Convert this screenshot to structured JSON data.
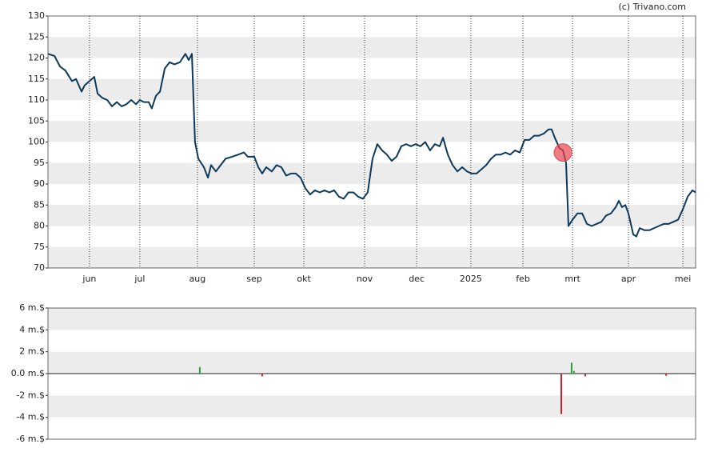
{
  "chart_data": [
    {
      "type": "line",
      "credit": "(c) Trivano.com",
      "xlim": [
        0,
        270
      ],
      "ylim": [
        70,
        130
      ],
      "yticks": [
        70,
        75,
        80,
        85,
        90,
        95,
        100,
        105,
        110,
        115,
        120,
        125,
        130
      ],
      "xticks": [
        {
          "value": 17.3,
          "label": "jun"
        },
        {
          "value": 38.3,
          "label": "jul"
        },
        {
          "value": 62.3,
          "label": "aug"
        },
        {
          "value": 86,
          "label": "sep"
        },
        {
          "value": 106.7,
          "label": "okt"
        },
        {
          "value": 132,
          "label": "nov"
        },
        {
          "value": 153.7,
          "label": "dec"
        },
        {
          "value": 176.3,
          "label": "2025"
        },
        {
          "value": 198,
          "label": "feb"
        },
        {
          "value": 218.7,
          "label": "mrt"
        },
        {
          "value": 242,
          "label": "apr"
        },
        {
          "value": 264.7,
          "label": "mei"
        }
      ],
      "series": [
        {
          "color": "#0d3a5c",
          "x": [
            0,
            2.7,
            5,
            7.3,
            10,
            11.7,
            14,
            15.3,
            17.3,
            19.3,
            20.7,
            22.7,
            24.7,
            26.7,
            28.7,
            30.7,
            32.7,
            34.7,
            36.7,
            38.3,
            40,
            42,
            43.3,
            45,
            46.7,
            48.7,
            50.7,
            52.7,
            55,
            57.3,
            58.7,
            60,
            61.3,
            62.7,
            65,
            66.7,
            68,
            70,
            72,
            74,
            76.7,
            79.3,
            81.7,
            83.3,
            86,
            87.7,
            89.3,
            91,
            93.3,
            95.3,
            97.3,
            99.3,
            101.3,
            103.3,
            105.3,
            107.3,
            109.3,
            111.3,
            113.3,
            115.3,
            117.3,
            119.3,
            121.3,
            123.3,
            125.3,
            127.3,
            129.3,
            131.3,
            133.3,
            135.3,
            137.3,
            139.3,
            141.3,
            143.3,
            145.3,
            147.3,
            149.3,
            151.3,
            153.3,
            155.3,
            157.3,
            159.3,
            161.3,
            163.3,
            164.7,
            166.7,
            168.7,
            170.7,
            172.7,
            174.7,
            176.7,
            178.7,
            180.7,
            182.7,
            184.7,
            186.7,
            188.7,
            190.7,
            192.7,
            194.7,
            196.7,
            198.7,
            200.7,
            202.7,
            204.7,
            206.7,
            208.7,
            210,
            211.3,
            213.3,
            214.7,
            216,
            217,
            218.7,
            220.7,
            222.7,
            224.7,
            226.7,
            228.7,
            230.7,
            232.7,
            234.7,
            236.7,
            238,
            239.3,
            240.7,
            242,
            244,
            245.3,
            246.7,
            248.7,
            250.7,
            252.7,
            254.7,
            256.7,
            258.7,
            260.7,
            262.7,
            264.7,
            266.7,
            268.7,
            270
          ],
          "values": [
            121,
            120.5,
            118,
            117,
            114.5,
            115,
            112,
            113.5,
            114.5,
            115.5,
            111.5,
            110.5,
            110,
            108.5,
            109.5,
            108.5,
            109,
            110,
            109,
            110,
            109.5,
            109.5,
            108,
            111,
            112,
            117.5,
            119,
            118.5,
            119,
            121,
            119.5,
            121,
            100,
            96,
            94,
            91.5,
            94.5,
            93,
            94.5,
            96,
            96.5,
            97,
            97.5,
            96.5,
            96.5,
            94,
            92.5,
            94,
            93,
            94.5,
            94,
            92,
            92.5,
            92.5,
            91.5,
            89,
            87.5,
            88.5,
            88,
            88.5,
            88,
            88.5,
            87,
            86.5,
            88,
            88,
            87,
            86.5,
            88,
            96,
            99.5,
            98,
            97,
            95.5,
            96.5,
            99,
            99.5,
            99,
            99.5,
            99,
            100,
            98,
            99.5,
            99,
            101,
            97,
            94.5,
            93,
            94,
            93,
            92.5,
            92.5,
            93.5,
            94.5,
            96,
            97,
            97,
            97.5,
            97,
            98,
            97.5,
            100.5,
            100.5,
            101.5,
            101.5,
            102,
            103,
            103,
            101,
            98.5,
            98,
            95,
            80,
            81.5,
            83,
            83,
            80.5,
            80,
            80.5,
            81,
            82.5,
            83,
            84.5,
            86,
            84.5,
            85,
            83,
            78,
            77.5,
            79.5,
            79,
            79,
            79.5,
            80,
            80.5,
            80.5,
            81,
            81.5,
            84,
            87,
            88.5,
            88
          ]
        }
      ],
      "marker": {
        "x": 214.7,
        "value": 97.5,
        "color": "#e8434f"
      }
    },
    {
      "type": "bar",
      "xlim": [
        0,
        270
      ],
      "ylim": [
        -6,
        6
      ],
      "yticks": [
        {
          "value": -6,
          "label": "-6 m.$"
        },
        {
          "value": -4,
          "label": "-4 m.$"
        },
        {
          "value": -2,
          "label": "-2 m.$"
        },
        {
          "value": 0,
          "label": "0.0 m.$"
        },
        {
          "value": 2,
          "label": "2 m.$"
        },
        {
          "value": 4,
          "label": "4 m.$"
        },
        {
          "value": 6,
          "label": "6 m.$"
        }
      ],
      "x": [
        63.3,
        89.3,
        214,
        218.3,
        219.3,
        224,
        257.7
      ],
      "values": [
        0.6,
        -0.25,
        -3.7,
        1.0,
        0.25,
        -0.25,
        -0.2
      ],
      "up_color": "#2e9e3a",
      "down_color": "#d0202a"
    }
  ]
}
